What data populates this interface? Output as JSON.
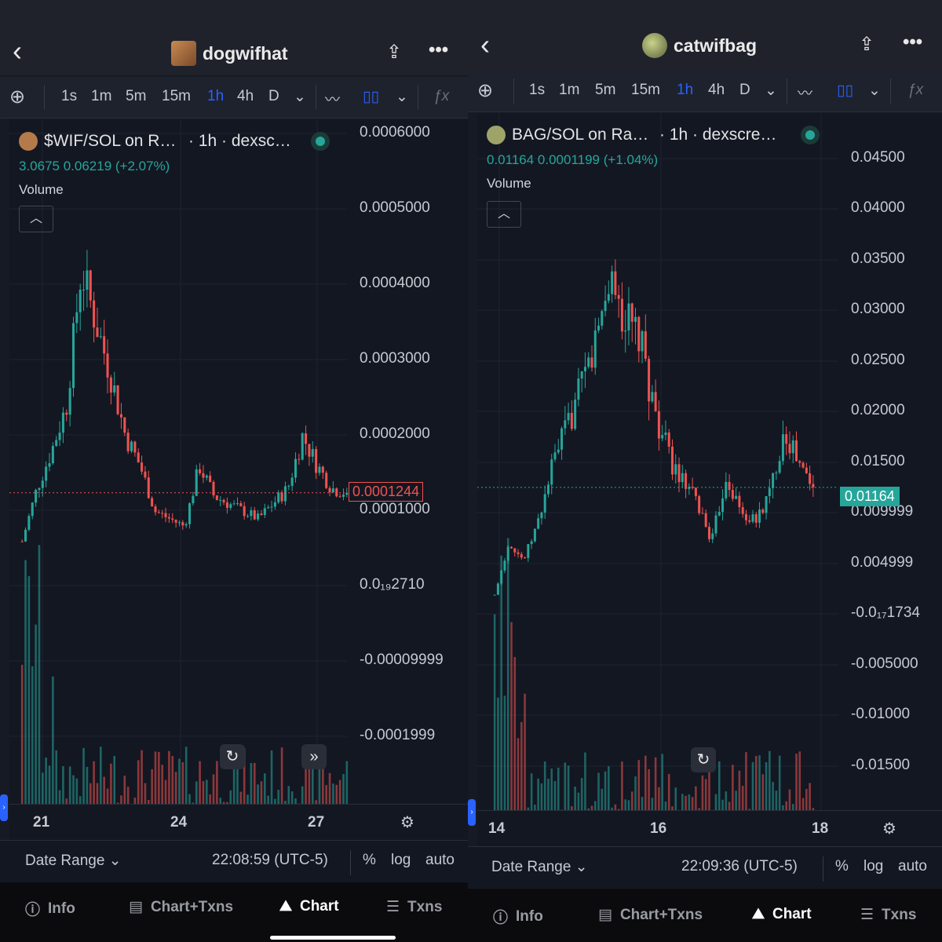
{
  "left": {
    "token_name": "dogwifhat",
    "timeframes": [
      "1s",
      "1m",
      "5m",
      "15m",
      "1h",
      "4h",
      "D"
    ],
    "active_timeframe": "1h",
    "pair_title": "$WIF/SOL on R…",
    "pair_meta": "· 1h · dexsc…",
    "stats": "3.0675  0.06219 (+2.07%)",
    "volume_label": "Volume",
    "price_axis": [
      "0.0006000",
      "0.0005000",
      "0.0004000",
      "0.0003000",
      "0.0002000",
      "0.0001000",
      "0.0₁₉2710",
      "-0.00009999",
      "-0.0001999"
    ],
    "current_price": "0.0001244",
    "date_labels": [
      "21",
      "24",
      "27"
    ],
    "date_range_label": "Date Range",
    "time": "22:08:59 (UTC-5)",
    "opts": [
      "%",
      "log",
      "auto"
    ]
  },
  "right": {
    "token_name": "catwifbag",
    "timeframes": [
      "1s",
      "1m",
      "5m",
      "15m",
      "1h",
      "4h",
      "D"
    ],
    "active_timeframe": "1h",
    "pair_title": "BAG/SOL on Ra…",
    "pair_meta": "· 1h · dexscre…",
    "stats": "0.01164  0.0001199 (+1.04%)",
    "volume_label": "Volume",
    "price_axis": [
      "0.04500",
      "0.04000",
      "0.03500",
      "0.03000",
      "0.02500",
      "0.02000",
      "0.01500",
      "0.009999",
      "0.004999",
      "-0.0₁₇1734",
      "-0.005000",
      "-0.01000",
      "-0.01500"
    ],
    "current_price": "0.01164",
    "date_labels": [
      "14",
      "16",
      "18"
    ],
    "date_range_label": "Date Range",
    "time": "22:09:36 (UTC-5)",
    "opts": [
      "%",
      "log",
      "auto"
    ]
  },
  "nav": [
    "Info",
    "Chart+Txns",
    "Chart",
    "Txns"
  ],
  "active_nav": "Chart",
  "colors": {
    "up": "#26a69a",
    "down": "#ef5350",
    "accent": "#2962ff"
  },
  "chart_data": [
    {
      "type": "candlestick",
      "pair": "$WIF/SOL",
      "interval": "1h",
      "ylim": [
        -0.0002,
        0.0006
      ],
      "x_ticks": [
        "21",
        "24",
        "27"
      ],
      "close_trend": [
        6e-05,
        0.00013,
        0.00018,
        0.00024,
        0.00042,
        0.00035,
        0.00028,
        0.0002,
        0.00016,
        0.0001,
        9e-05,
        8e-05,
        0.00016,
        0.00012,
        0.00011,
        0.0001,
        9e-05,
        0.00011,
        0.00013,
        0.0002,
        0.00016,
        0.00013,
        0.0001244
      ],
      "last_price": 0.0001244
    },
    {
      "type": "candlestick",
      "pair": "BAG/SOL",
      "interval": "1h",
      "ylim": [
        -0.0175,
        0.046
      ],
      "x_ticks": [
        "14",
        "16",
        "18"
      ],
      "close_trend": [
        0.0004,
        0.006,
        0.004,
        0.008,
        0.014,
        0.018,
        0.022,
        0.027,
        0.034,
        0.029,
        0.027,
        0.02,
        0.015,
        0.012,
        0.01,
        0.006,
        0.013,
        0.009,
        0.008,
        0.011,
        0.018,
        0.014,
        0.01164
      ],
      "last_price": 0.01164
    }
  ]
}
